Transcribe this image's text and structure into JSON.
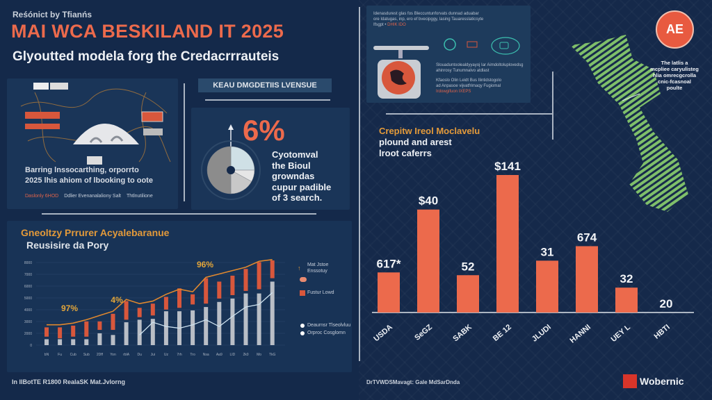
{
  "header": {
    "kicker": "Reśónict by Tfianńs",
    "title": "MAI WCA BESKILAND IT 2025",
    "subtitle": "Glyoutted modela forg the Credacrrrauteis"
  },
  "globe_panel": {
    "line1": "Barring lnssocarthing, orporrto",
    "line2": "2025 lhis ahiom of lbooking to oote",
    "legend": [
      "Daslonly 6HOD",
      "Ddlier Evenanalaliony Salt",
      "Thtlnutilione"
    ]
  },
  "stat_panel": {
    "header": "KEAU DMGDETIIS LVENSUE",
    "value": "6%",
    "pie_fractions": [
      0.25,
      0.08,
      0.17,
      0.5
    ],
    "desc": [
      "Cyotomval",
      "the Bioul",
      "growndas",
      "cupur padible",
      "of 3 search."
    ]
  },
  "device_panel": {
    "top_text": [
      "Idenasdurest glas fos Bleccuntunforvats dunnad aduabar",
      "ore Idatugas, inp, ero ef bvecipggy, lasing Tauaresslaticsyte"
    ],
    "top_tag_prefix": "Ifsgpt •",
    "top_tag": "DHIK IDO",
    "mid_text": [
      "Slouaduntoolealdyyayoj Iar Aimdoltoluplovedsg",
      "ahinrosy Tunumnalvo atdlast"
    ],
    "bottom_text": [
      "Kfaoslo Olin Leidt Bus Ilintidstogolo",
      "ad Anpasoe vijvatfrimaqy Fugiomal"
    ],
    "bottom_tag": "Irdowgifuon IXEPS"
  },
  "map_panel": {
    "badge": "AE",
    "annotation": [
      "The latlis a",
      "mcpliee caryulisteg",
      "hlia omrecgcrolla",
      "cnic-fcasnoal",
      "poulte"
    ]
  },
  "footer": {
    "left": "In IlBotTE R1800 RealaSK Mat.Jvlorng",
    "middle": "DrTVWDSMavagt:  Gale MdSarDnda",
    "logo": "Wobernic"
  },
  "colors": {
    "background": "#14294a",
    "accent": "#ec6a4c",
    "gray_bar": "#b9bec6",
    "map_green": "#7fbf6a",
    "gold": "#e3a63a"
  },
  "chart_data": [
    {
      "type": "bar",
      "title": "Gneoltzy Prrurer Acyalebaranue",
      "subtitle": "Reusisire da Pory",
      "categories": [
        "bN",
        "Fu",
        "Cub",
        "Sub",
        "2Dff",
        "Yon",
        "rblA",
        "Du",
        "Jui",
        "Uz",
        "7rh",
        "Tro",
        "Nsa",
        "Aa9",
        "LID",
        "2k0",
        "Mo",
        "TkG"
      ],
      "y_ticks": [
        "8000",
        "7000",
        "6000",
        "5000",
        "4000",
        "3000",
        "2000",
        "0"
      ],
      "ylim": [
        0,
        105
      ],
      "series": [
        {
          "name": "orange_top",
          "values": [
            21,
            21,
            23,
            28,
            28,
            37,
            52,
            44,
            49,
            57,
            67,
            60,
            79,
            75,
            82,
            90,
            98,
            100
          ]
        },
        {
          "name": "orange_bottom",
          "values": [
            10,
            8,
            10,
            10,
            18,
            18,
            30,
            33,
            35,
            42,
            44,
            48,
            49,
            55,
            59,
            64,
            66,
            79
          ]
        },
        {
          "name": "gray_top",
          "values": [
            7,
            7,
            7,
            7,
            14,
            12,
            27,
            30,
            31,
            40,
            40,
            41,
            45,
            51,
            55,
            61,
            61,
            75
          ]
        },
        {
          "name": "trend_orange",
          "values": [
            24,
            24,
            26,
            30,
            35,
            40,
            54,
            49,
            52,
            60,
            66,
            63,
            80,
            84,
            88,
            92,
            99,
            101
          ]
        },
        {
          "name": "trend_white",
          "values": [
            null,
            null,
            null,
            null,
            null,
            null,
            null,
            12,
            27,
            22,
            20,
            24,
            30,
            22,
            34,
            45,
            48,
            62
          ]
        }
      ],
      "annotations": [
        "97%",
        "4%",
        "96%"
      ],
      "legend": [
        "Mat Jstoe",
        "Enssotuy",
        "Fustur Lowd",
        "Deaurnsr Tlseolvluu",
        "Orproc Cosglomn"
      ],
      "legend_placement": "right"
    },
    {
      "type": "bar",
      "title": [
        "Crepitw Ireol Moclavelu",
        "plound and arest",
        "lroot caferrs"
      ],
      "categories": [
        "USDA",
        "SeGZ",
        "SABK",
        "BE 12",
        "JLUDI",
        "HANNI",
        "UEY L",
        "HBTI"
      ],
      "data_labels": [
        "617*",
        "$40",
        "52",
        "$141",
        "31",
        "674",
        "32",
        "20"
      ],
      "values": [
        58,
        149,
        54,
        199,
        75,
        96,
        36,
        0
      ],
      "ylim": [
        0,
        210
      ]
    }
  ]
}
